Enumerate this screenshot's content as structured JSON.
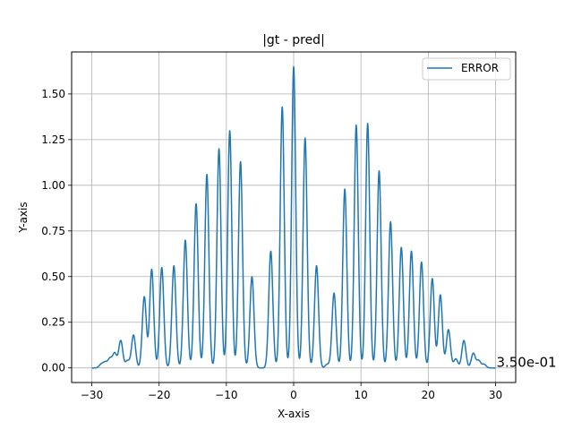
{
  "chart_data": {
    "type": "line",
    "title": "|gt - pred|",
    "xlabel": "X-axis",
    "ylabel": "Y-axis",
    "xlim": [
      -33,
      33
    ],
    "ylim": [
      -0.08,
      1.73
    ],
    "xticks": [
      -30,
      -20,
      -10,
      0,
      10,
      20,
      30
    ],
    "xtick_labels": [
      "−30",
      "−20",
      "−10",
      "0",
      "10",
      "20",
      "30"
    ],
    "yticks": [
      0.0,
      0.25,
      0.5,
      0.75,
      1.0,
      1.25,
      1.5
    ],
    "ytick_labels": [
      "0.00",
      "0.25",
      "0.50",
      "0.75",
      "1.00",
      "1.25",
      "1.50"
    ],
    "grid": true,
    "legend_position": "top-right",
    "series": [
      {
        "name": "ERROR",
        "color": "#1f77b4",
        "peaks": [
          {
            "x": -28.6,
            "y": 0.02
          },
          {
            "x": -28.0,
            "y": 0.03
          },
          {
            "x": -27.3,
            "y": 0.05
          },
          {
            "x": -26.6,
            "y": 0.08
          },
          {
            "x": -25.7,
            "y": 0.15
          },
          {
            "x": -24.7,
            "y": 0.04
          },
          {
            "x": -23.8,
            "y": 0.18
          },
          {
            "x": -22.2,
            "y": 0.39
          },
          {
            "x": -21.1,
            "y": 0.54
          },
          {
            "x": -19.6,
            "y": 0.55
          },
          {
            "x": -17.8,
            "y": 0.56
          },
          {
            "x": -16.1,
            "y": 0.7
          },
          {
            "x": -14.5,
            "y": 0.9
          },
          {
            "x": -12.9,
            "y": 1.06
          },
          {
            "x": -11.1,
            "y": 1.2
          },
          {
            "x": -9.5,
            "y": 1.3
          },
          {
            "x": -7.9,
            "y": 1.13
          },
          {
            "x": -6.2,
            "y": 0.5
          },
          {
            "x": -3.4,
            "y": 0.64
          },
          {
            "x": -1.7,
            "y": 1.43
          },
          {
            "x": 0.0,
            "y": 1.65
          },
          {
            "x": 1.7,
            "y": 1.26
          },
          {
            "x": 3.4,
            "y": 0.56
          },
          {
            "x": 5.0,
            "y": 0.02
          },
          {
            "x": 6.0,
            "y": 0.41
          },
          {
            "x": 7.6,
            "y": 0.98
          },
          {
            "x": 9.3,
            "y": 1.33
          },
          {
            "x": 11.0,
            "y": 1.34
          },
          {
            "x": 12.7,
            "y": 1.08
          },
          {
            "x": 14.4,
            "y": 0.8
          },
          {
            "x": 16.0,
            "y": 0.66
          },
          {
            "x": 17.5,
            "y": 0.64
          },
          {
            "x": 19.0,
            "y": 0.58
          },
          {
            "x": 20.6,
            "y": 0.49
          },
          {
            "x": 21.8,
            "y": 0.4
          },
          {
            "x": 23.0,
            "y": 0.21
          },
          {
            "x": 24.1,
            "y": 0.05
          },
          {
            "x": 25.3,
            "y": 0.15
          },
          {
            "x": 26.7,
            "y": 0.08
          },
          {
            "x": 27.5,
            "y": 0.04
          },
          {
            "x": 28.3,
            "y": 0.02
          }
        ]
      }
    ],
    "annotation": "3.50e-01"
  }
}
